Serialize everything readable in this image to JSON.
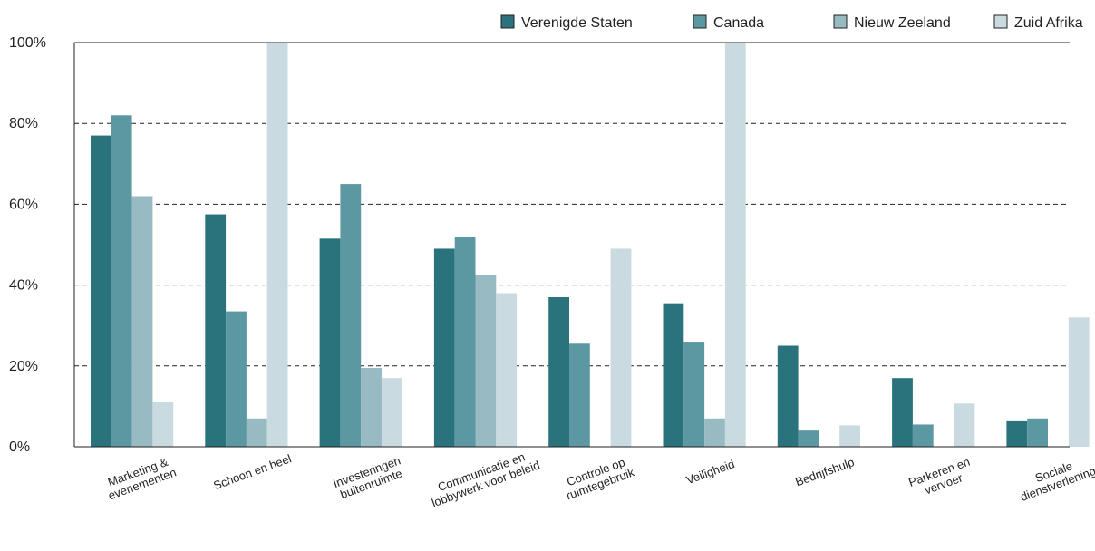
{
  "chart_data": {
    "type": "bar",
    "title": "",
    "xlabel": "",
    "ylabel": "",
    "ylim": [
      0,
      100
    ],
    "y_ticks": [
      "0%",
      "20%",
      "40%",
      "60%",
      "80%",
      "100%"
    ],
    "grid": "horizontal dashed",
    "legend_position": "top-right",
    "categories": [
      [
        "Marketing &",
        "evenementen"
      ],
      [
        "Schoon en heel"
      ],
      [
        "Investeringen",
        "buitenruimte"
      ],
      [
        "Communicatie en",
        "lobbywerk voor beleid"
      ],
      [
        "Controle op",
        "ruimtegebruik"
      ],
      [
        "Veiligheid"
      ],
      [
        "Bedrijfshulp"
      ],
      [
        "Parkeren en",
        "vervoer"
      ],
      [
        "Sociale",
        "dienstverlening"
      ]
    ],
    "series": [
      {
        "name": "Verenigde Staten",
        "color": "#2a737c",
        "values": [
          77,
          57.5,
          51.5,
          49,
          37,
          35.5,
          25,
          17,
          6.3
        ]
      },
      {
        "name": "Canada",
        "color": "#5c98a2",
        "values": [
          82,
          33.5,
          65,
          52,
          25.5,
          26,
          4,
          5.5,
          7
        ]
      },
      {
        "name": "Nieuw Zeeland",
        "color": "#97bac3",
        "values": [
          62,
          7,
          19.5,
          42.5,
          0,
          7,
          0,
          0,
          0
        ]
      },
      {
        "name": "Zuid Afrika",
        "color": "#c9dbe0",
        "values": [
          11,
          100,
          17,
          38,
          49,
          100,
          5.3,
          10.7,
          32
        ]
      }
    ]
  }
}
